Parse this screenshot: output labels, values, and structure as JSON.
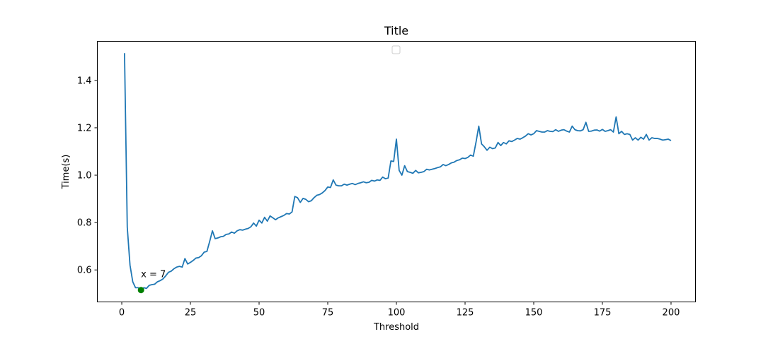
{
  "chart_data": {
    "type": "line",
    "title": "Title",
    "xlabel": "Threshold",
    "ylabel": "Time(s)",
    "xlim": [
      -8.9,
      208.9
    ],
    "ylim": [
      0.465,
      1.565
    ],
    "xticks": [
      0,
      25,
      50,
      75,
      100,
      125,
      150,
      175,
      200
    ],
    "yticks": [
      0.6,
      0.8,
      1.0,
      1.2,
      1.4
    ],
    "yticklabels": [
      "0.6",
      "0.8",
      "1.0",
      "1.2",
      "1.4"
    ],
    "grid": false,
    "legend": {
      "placement": "upper center",
      "entries": []
    },
    "line_color": "#1f77b4",
    "marker_color": "#008000",
    "series": [
      {
        "x_start": 1,
        "x_step": 1,
        "values": [
          1.515,
          0.78,
          0.62,
          0.55,
          0.525,
          0.525,
          0.515,
          0.525,
          0.522,
          0.535,
          0.538,
          0.54,
          0.55,
          0.555,
          0.562,
          0.575,
          0.59,
          0.595,
          0.605,
          0.612,
          0.615,
          0.612,
          0.648,
          0.625,
          0.632,
          0.64,
          0.65,
          0.652,
          0.66,
          0.675,
          0.678,
          0.72,
          0.765,
          0.732,
          0.735,
          0.74,
          0.742,
          0.75,
          0.752,
          0.76,
          0.755,
          0.765,
          0.77,
          0.768,
          0.772,
          0.775,
          0.782,
          0.798,
          0.785,
          0.81,
          0.798,
          0.822,
          0.806,
          0.828,
          0.82,
          0.812,
          0.82,
          0.825,
          0.83,
          0.838,
          0.836,
          0.845,
          0.91,
          0.905,
          0.885,
          0.902,
          0.898,
          0.888,
          0.892,
          0.905,
          0.915,
          0.918,
          0.925,
          0.935,
          0.95,
          0.948,
          0.98,
          0.958,
          0.955,
          0.955,
          0.962,
          0.958,
          0.962,
          0.965,
          0.96,
          0.965,
          0.968,
          0.972,
          0.968,
          0.97,
          0.978,
          0.975,
          0.98,
          0.978,
          0.992,
          0.985,
          0.988,
          1.06,
          1.058,
          1.152,
          1.02,
          1.0,
          1.04,
          1.015,
          1.012,
          1.008,
          1.02,
          1.01,
          1.012,
          1.015,
          1.025,
          1.022,
          1.025,
          1.028,
          1.032,
          1.035,
          1.045,
          1.04,
          1.045,
          1.052,
          1.055,
          1.062,
          1.065,
          1.072,
          1.07,
          1.075,
          1.085,
          1.08,
          1.14,
          1.207,
          1.132,
          1.12,
          1.105,
          1.118,
          1.112,
          1.115,
          1.138,
          1.125,
          1.138,
          1.132,
          1.145,
          1.142,
          1.148,
          1.155,
          1.152,
          1.158,
          1.165,
          1.175,
          1.17,
          1.175,
          1.188,
          1.185,
          1.182,
          1.182,
          1.188,
          1.185,
          1.184,
          1.192,
          1.185,
          1.19,
          1.192,
          1.186,
          1.182,
          1.207,
          1.192,
          1.188,
          1.187,
          1.192,
          1.223,
          1.185,
          1.186,
          1.19,
          1.191,
          1.186,
          1.193,
          1.185,
          1.188,
          1.192,
          1.182,
          1.246,
          1.175,
          1.185,
          1.172,
          1.175,
          1.172,
          1.148,
          1.158,
          1.148,
          1.16,
          1.152,
          1.172,
          1.148,
          1.158,
          1.155,
          1.155,
          1.152,
          1.148,
          1.15,
          1.152,
          1.146
        ]
      }
    ],
    "annotation": {
      "x": 7,
      "y": 0.515,
      "text": "x = 7"
    }
  }
}
